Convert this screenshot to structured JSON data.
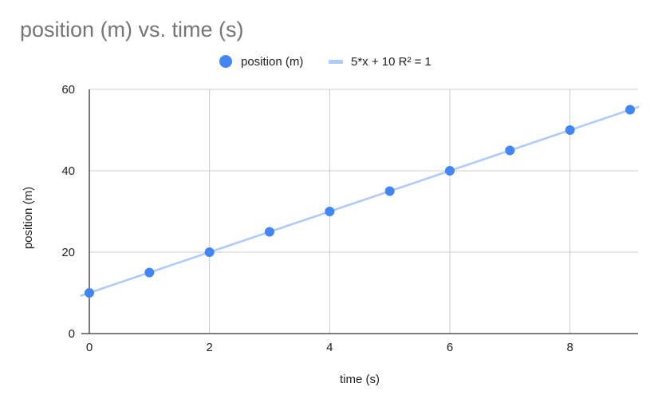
{
  "chart_data": {
    "type": "scatter",
    "title": "position (m) vs. time (s)",
    "xlabel": "time (s)",
    "ylabel": "position (m)",
    "xlim": [
      0,
      9
    ],
    "ylim": [
      0,
      60
    ],
    "xticks": [
      0,
      2,
      4,
      6,
      8
    ],
    "yticks": [
      0,
      20,
      40,
      60
    ],
    "grid": true,
    "legend_position": "top",
    "series": [
      {
        "name": "position (m)",
        "color": "#4285f4",
        "x": [
          0,
          1,
          2,
          3,
          4,
          5,
          6,
          7,
          8,
          9
        ],
        "y": [
          10,
          15,
          20,
          25,
          30,
          35,
          40,
          45,
          50,
          55
        ]
      }
    ],
    "trendline": {
      "label": "5*x + 10 R² = 1",
      "slope": 5,
      "intercept": 10,
      "color": "#aecbfa",
      "x_range": [
        -0.15,
        9.15
      ]
    }
  }
}
